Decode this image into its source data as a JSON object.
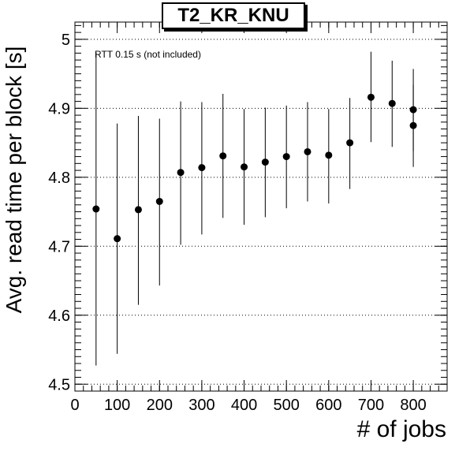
{
  "chart_data": {
    "type": "scatter",
    "title": "T2_KR_KNU",
    "xlabel": "# of jobs",
    "ylabel": "Avg. read time per block [s]",
    "annotation": "RTT 0.15 s (not included)",
    "xlim": [
      0,
      880
    ],
    "ylim": [
      4.49,
      5.025
    ],
    "xticks": [
      0,
      100,
      200,
      300,
      400,
      500,
      600,
      700,
      800
    ],
    "yticks": [
      4.5,
      4.6,
      4.7,
      4.8,
      4.9,
      5.0
    ],
    "ytick_labels": [
      "4.5",
      "4.6",
      "4.7",
      "4.8",
      "4.9",
      "5"
    ],
    "grid": "horizontal dotted",
    "marker_color": "#000000",
    "points": [
      {
        "x": 50,
        "y": 4.754,
        "ylow": 4.527,
        "yhigh": 4.981
      },
      {
        "x": 100,
        "y": 4.711,
        "ylow": 4.544,
        "yhigh": 4.878
      },
      {
        "x": 150,
        "y": 4.753,
        "ylow": 4.615,
        "yhigh": 4.889
      },
      {
        "x": 200,
        "y": 4.765,
        "ylow": 4.643,
        "yhigh": 4.885
      },
      {
        "x": 250,
        "y": 4.807,
        "ylow": 4.702,
        "yhigh": 4.91
      },
      {
        "x": 300,
        "y": 4.814,
        "ylow": 4.717,
        "yhigh": 4.909
      },
      {
        "x": 350,
        "y": 4.831,
        "ylow": 4.741,
        "yhigh": 4.921
      },
      {
        "x": 400,
        "y": 4.815,
        "ylow": 4.731,
        "yhigh": 4.899
      },
      {
        "x": 450,
        "y": 4.822,
        "ylow": 4.742,
        "yhigh": 4.901
      },
      {
        "x": 500,
        "y": 4.83,
        "ylow": 4.755,
        "yhigh": 4.904
      },
      {
        "x": 550,
        "y": 4.837,
        "ylow": 4.765,
        "yhigh": 4.909
      },
      {
        "x": 600,
        "y": 4.832,
        "ylow": 4.762,
        "yhigh": 4.899
      },
      {
        "x": 650,
        "y": 4.85,
        "ylow": 4.783,
        "yhigh": 4.915
      },
      {
        "x": 700,
        "y": 4.916,
        "ylow": 4.851,
        "yhigh": 4.982
      },
      {
        "x": 750,
        "y": 4.907,
        "ylow": 4.844,
        "yhigh": 4.969
      },
      {
        "x": 800,
        "y": 4.898,
        "ylow": 4.838,
        "yhigh": 4.957
      },
      {
        "x": 800,
        "y": 4.875,
        "ylow": 4.815,
        "yhigh": 4.934
      }
    ]
  }
}
